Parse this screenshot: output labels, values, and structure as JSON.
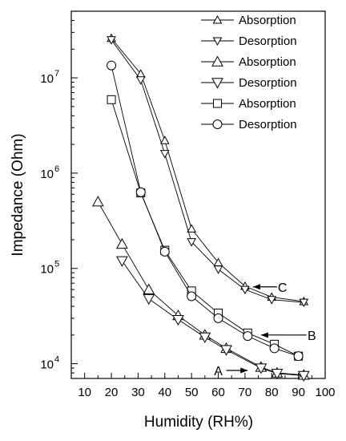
{
  "chart_data": {
    "type": "line",
    "title": "",
    "xlabel": "Humidity (RH%)",
    "ylabel": "Impedance (Ohm)",
    "xlim": [
      5,
      100
    ],
    "ylim": [
      7000,
      50000000
    ],
    "yscale": "log",
    "x_ticks": [
      10,
      20,
      30,
      40,
      50,
      60,
      70,
      80,
      90,
      100
    ],
    "x_tick_labels": [
      "10",
      "20",
      "30",
      "40",
      "50",
      "60",
      "70",
      "80",
      "90",
      "100"
    ],
    "y_ticks": [
      10000,
      100000,
      1000000,
      10000000
    ],
    "y_tick_labels": [
      {
        "base": "10",
        "exp": "4"
      },
      {
        "base": "10",
        "exp": "5"
      },
      {
        "base": "10",
        "exp": "6"
      },
      {
        "base": "10",
        "exp": "7"
      }
    ],
    "grid": false,
    "legend_position": "top-right",
    "series": [
      {
        "name": "Absorption",
        "marker": "triangle-up-small",
        "x": [
          20,
          31,
          40,
          50,
          60,
          70,
          80,
          92
        ],
        "y": [
          26000000,
          11000000,
          2200000,
          260000,
          115000,
          65000,
          50000,
          45000
        ]
      },
      {
        "name": "Desorption",
        "marker": "triangle-down-small",
        "x": [
          20,
          31,
          40,
          50,
          60,
          70,
          80,
          92
        ],
        "y": [
          25000000,
          9500000,
          1600000,
          190000,
          98000,
          60000,
          47000,
          44000
        ]
      },
      {
        "name": "Absorption",
        "marker": "triangle-up",
        "x": [
          15,
          24,
          34,
          45,
          55,
          63,
          76,
          82,
          92
        ],
        "y": [
          500000,
          180000,
          60000,
          32000,
          20000,
          14500,
          9200,
          8000,
          7600
        ]
      },
      {
        "name": "Desorption",
        "marker": "triangle-down",
        "x": [
          24,
          34,
          45,
          55,
          63,
          76,
          82,
          92
        ],
        "y": [
          120000,
          48000,
          29000,
          19000,
          14000,
          9000,
          7900,
          7500
        ]
      },
      {
        "name": "Absorption",
        "marker": "square",
        "x": [
          20,
          31,
          40,
          50,
          60,
          71,
          81,
          90
        ],
        "y": [
          5900000,
          620000,
          155000,
          58000,
          34000,
          21000,
          16000,
          12000
        ]
      },
      {
        "name": "Desorption",
        "marker": "circle",
        "x": [
          20,
          31,
          40,
          50,
          60,
          71,
          81,
          90
        ],
        "y": [
          13500000,
          630000,
          150000,
          51000,
          30000,
          19500,
          14500,
          12000
        ]
      }
    ],
    "annotations": [
      {
        "text": "C",
        "x": 84,
        "y": 64000,
        "arrow_from_x": 82,
        "arrow_to_x": 73
      },
      {
        "text": "B",
        "x": 95,
        "y": 20000,
        "arrow_from_x": 93,
        "arrow_to_x": 76
      },
      {
        "text": "A",
        "x": 60,
        "y": 8500,
        "arrow_from_x": 63,
        "arrow_to_x": 71
      }
    ]
  }
}
